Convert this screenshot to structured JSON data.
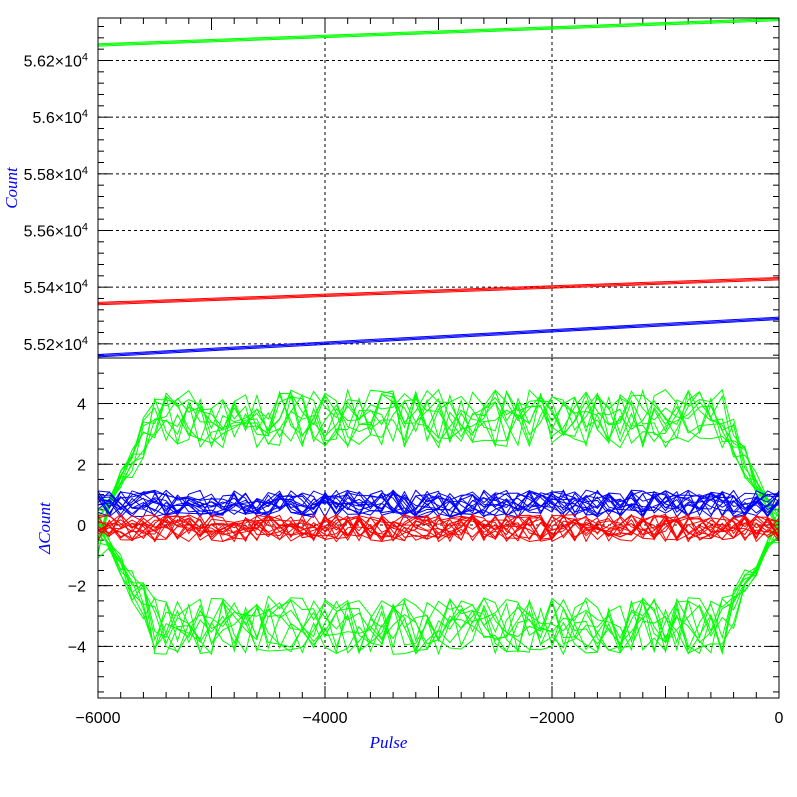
{
  "chart_data": [
    {
      "type": "line",
      "panel": "top",
      "title": "",
      "xlabel": "",
      "ylabel": "Count",
      "ylabel_color": "#0000ff",
      "xlim": [
        -6000,
        0
      ],
      "ylim": [
        55150,
        56350
      ],
      "grid": true,
      "y_major_ticks": [
        55200,
        55400,
        55600,
        55800,
        56000,
        56200
      ],
      "y_tick_labels": [
        {
          "mantissa": "5.52",
          "exp": "4"
        },
        {
          "mantissa": "5.54",
          "exp": "4"
        },
        {
          "mantissa": "5.56",
          "exp": "4"
        },
        {
          "mantissa": "5.58",
          "exp": "4"
        },
        {
          "mantissa": "5.6",
          "exp": "4"
        },
        {
          "mantissa": "5.62",
          "exp": "4"
        }
      ],
      "series": [
        {
          "color": "#00ff00",
          "x": [
            -6000,
            0
          ],
          "y": [
            56255,
            56345
          ]
        },
        {
          "color": "#ff0000",
          "x": [
            -6000,
            0
          ],
          "y": [
            55342,
            55430
          ]
        },
        {
          "color": "#0000ff",
          "x": [
            -6000,
            0
          ],
          "y": [
            55158,
            55290
          ]
        }
      ]
    },
    {
      "type": "line",
      "panel": "bottom",
      "title": "",
      "xlabel": "Pulse",
      "xlabel_color": "#0000ff",
      "ylabel": "ΔCount",
      "ylabel_color": "#0000ff",
      "xlim": [
        -6000,
        0
      ],
      "ylim": [
        -5.7,
        5.5
      ],
      "grid": true,
      "x_major_ticks": [
        -6000,
        -4000,
        -2000,
        0
      ],
      "x_tick_labels": [
        "−6000",
        "−4000",
        "−2000",
        "0"
      ],
      "y_major_ticks": [
        -4,
        -2,
        0,
        2,
        4
      ],
      "y_tick_labels": [
        "−4",
        "−2",
        "0",
        "2",
        "4"
      ],
      "series_groups": [
        {
          "color": "#00ff00",
          "count": 10,
          "center": 3.5,
          "amplitude": 0.6,
          "mode": "upper"
        },
        {
          "color": "#00ff00",
          "count": 10,
          "center": -3.3,
          "amplitude": 0.6,
          "mode": "lower"
        },
        {
          "color": "#0000ff",
          "count": 14,
          "center": 0.7,
          "amplitude": 0.35,
          "mode": "band"
        },
        {
          "color": "#ff0000",
          "count": 14,
          "center": -0.1,
          "amplitude": 0.35,
          "mode": "band"
        }
      ]
    }
  ]
}
